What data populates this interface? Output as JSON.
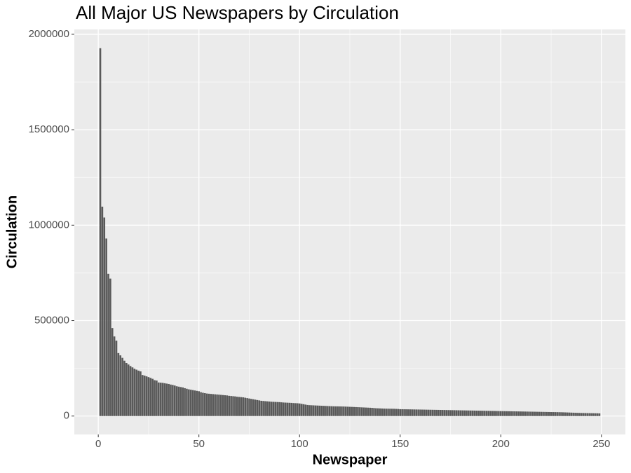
{
  "chart_data": {
    "type": "bar",
    "title": "All Major US Newspapers by Circulation",
    "x_label": "Newspaper",
    "y_label": "Circulation",
    "color": "#595959",
    "grid": true,
    "minor_grid": true,
    "xlim": [
      -11.9,
      261.9
    ],
    "xticks": [
      0,
      50,
      100,
      150,
      200,
      250
    ],
    "ylim": [
      -96450,
      2025450
    ],
    "yticks": [
      0,
      500000,
      1000000,
      1500000,
      2000000
    ],
    "bar_width": 0.9,
    "x": [
      1,
      2,
      3,
      4,
      5,
      6,
      7,
      8,
      9,
      10,
      11,
      12,
      13,
      14,
      15,
      16,
      17,
      18,
      19,
      20,
      21,
      22,
      23,
      24,
      25,
      26,
      27,
      28,
      29,
      30,
      31,
      32,
      33,
      34,
      35,
      36,
      37,
      38,
      39,
      40,
      41,
      42,
      43,
      44,
      45,
      46,
      47,
      48,
      49,
      50,
      51,
      52,
      53,
      54,
      55,
      56,
      57,
      58,
      59,
      60,
      61,
      62,
      63,
      64,
      65,
      66,
      67,
      68,
      69,
      70,
      71,
      72,
      73,
      74,
      75,
      76,
      77,
      78,
      79,
      80,
      81,
      82,
      83,
      84,
      85,
      86,
      87,
      88,
      89,
      90,
      91,
      92,
      93,
      94,
      95,
      96,
      97,
      98,
      99,
      100,
      101,
      102,
      103,
      104,
      105,
      106,
      107,
      108,
      109,
      110,
      111,
      112,
      113,
      114,
      115,
      116,
      117,
      118,
      119,
      120,
      121,
      122,
      123,
      124,
      125,
      126,
      127,
      128,
      129,
      130,
      131,
      132,
      133,
      134,
      135,
      136,
      137,
      138,
      139,
      140,
      141,
      142,
      143,
      144,
      145,
      146,
      147,
      148,
      149,
      150,
      151,
      152,
      153,
      154,
      155,
      156,
      157,
      158,
      159,
      160,
      161,
      162,
      163,
      164,
      165,
      166,
      167,
      168,
      169,
      170,
      171,
      172,
      173,
      174,
      175,
      176,
      177,
      178,
      179,
      180,
      181,
      182,
      183,
      184,
      185,
      186,
      187,
      188,
      189,
      190,
      191,
      192,
      193,
      194,
      195,
      196,
      197,
      198,
      199,
      200,
      201,
      202,
      203,
      204,
      205,
      206,
      207,
      208,
      209,
      210,
      211,
      212,
      213,
      214,
      215,
      216,
      217,
      218,
      219,
      220,
      221,
      222,
      223,
      224,
      225,
      226,
      227,
      228,
      229,
      230,
      231,
      232,
      233,
      234,
      235,
      236,
      237,
      238,
      239,
      240,
      241,
      242,
      243,
      244,
      245,
      246,
      247,
      248,
      249
    ],
    "values": [
      1927000,
      1097000,
      1040000,
      930000,
      745000,
      720000,
      461000,
      417000,
      395000,
      330000,
      318000,
      305000,
      290000,
      278000,
      270000,
      262000,
      255000,
      248000,
      243000,
      238000,
      234000,
      215000,
      212000,
      208000,
      204000,
      200000,
      195000,
      188000,
      186000,
      176000,
      175000,
      174000,
      172000,
      170000,
      168000,
      165000,
      163000,
      160000,
      156000,
      154000,
      152000,
      150000,
      146000,
      143000,
      140000,
      138000,
      136000,
      134000,
      132000,
      130000,
      125000,
      122000,
      120000,
      118000,
      117000,
      116000,
      115000,
      114000,
      113000,
      112000,
      111000,
      110000,
      109000,
      108000,
      106000,
      105000,
      104000,
      103000,
      101000,
      100000,
      99000,
      98000,
      96000,
      94000,
      92000,
      90000,
      88000,
      86000,
      84000,
      82000,
      80000,
      79000,
      78000,
      77000,
      76000,
      75000,
      74500,
      74000,
      73500,
      73000,
      72000,
      71000,
      70500,
      70000,
      69500,
      69000,
      68000,
      67500,
      67000,
      66000,
      64000,
      62000,
      60000,
      58000,
      57000,
      56500,
      56000,
      55500,
      55000,
      54500,
      54000,
      53500,
      53000,
      52500,
      52000,
      51500,
      51000,
      50800,
      50600,
      50400,
      50200,
      50000,
      49500,
      49000,
      48500,
      48000,
      47500,
      47000,
      46500,
      46000,
      45500,
      45000,
      44500,
      44000,
      43500,
      43000,
      42000,
      41000,
      40500,
      40000,
      39500,
      39000,
      38800,
      38600,
      38400,
      38200,
      38000,
      37500,
      37000,
      36000,
      35800,
      35600,
      35400,
      35200,
      35000,
      34800,
      34600,
      34400,
      34200,
      34000,
      33800,
      33600,
      33400,
      33200,
      33000,
      32800,
      32600,
      32400,
      32200,
      32000,
      31800,
      31600,
      31400,
      31200,
      31000,
      30800,
      30600,
      30400,
      30200,
      30000,
      29800,
      29600,
      29400,
      29200,
      29000,
      28800,
      28600,
      28400,
      28200,
      28000,
      27800,
      27600,
      27400,
      27200,
      27000,
      26800,
      26600,
      26400,
      26200,
      26000,
      25800,
      25600,
      25400,
      25200,
      25000,
      24800,
      24600,
      24400,
      24200,
      24000,
      23800,
      23600,
      23400,
      23200,
      23000,
      22800,
      22600,
      22400,
      22200,
      22000,
      21800,
      21600,
      21400,
      21200,
      21000,
      20800,
      20600,
      20400,
      20200,
      20000,
      19600,
      19200,
      18800,
      18400,
      18000,
      17600,
      17200,
      16800,
      16400,
      16000,
      15800,
      15600,
      15400,
      15200,
      15000,
      14800,
      14600,
      14400,
      14000
    ]
  }
}
